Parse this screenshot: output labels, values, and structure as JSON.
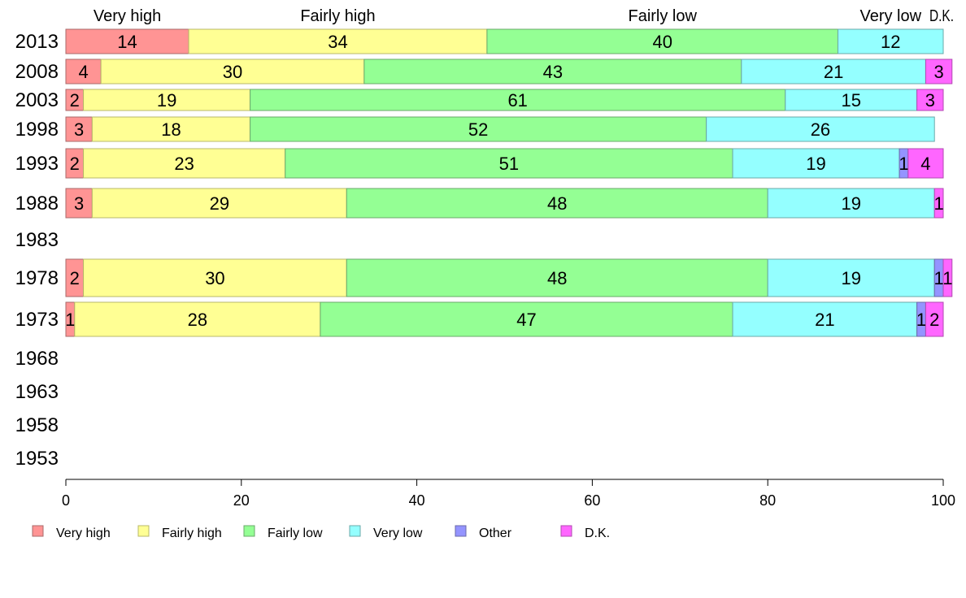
{
  "chart_data": {
    "type": "bar",
    "orientation": "horizontal",
    "stacked": true,
    "title": "",
    "xlabel": "",
    "ylabel": "",
    "xlim": [
      0,
      100
    ],
    "xticks": [
      0,
      20,
      40,
      60,
      80,
      100
    ],
    "grid": false,
    "legend_position": "bottom",
    "categories": [
      "2013",
      "2008",
      "2003",
      "1998",
      "1993",
      "1988",
      "1983",
      "1978",
      "1973",
      "1968",
      "1963",
      "1958",
      "1953"
    ],
    "series": [
      {
        "name": "Very high",
        "color": "#ff9494",
        "values": [
          14,
          4,
          2,
          3,
          2,
          3,
          null,
          2,
          1,
          null,
          null,
          null,
          null
        ]
      },
      {
        "name": "Fairly high",
        "color": "#ffff94",
        "values": [
          34,
          30,
          19,
          18,
          23,
          29,
          null,
          30,
          28,
          null,
          null,
          null,
          null
        ]
      },
      {
        "name": "Fairly low",
        "color": "#94ff94",
        "values": [
          40,
          43,
          61,
          52,
          51,
          48,
          null,
          48,
          47,
          null,
          null,
          null,
          null
        ]
      },
      {
        "name": "Very low",
        "color": "#94ffff",
        "values": [
          12,
          21,
          15,
          26,
          19,
          19,
          null,
          19,
          21,
          null,
          null,
          null,
          null
        ]
      },
      {
        "name": "Other",
        "color": "#9494ff",
        "values": [
          0,
          0,
          0,
          0,
          1,
          0,
          null,
          1,
          1,
          null,
          null,
          null,
          null
        ]
      },
      {
        "name": "D.K.",
        "color": "#ff66ff",
        "values": [
          0,
          3,
          3,
          0,
          4,
          1,
          null,
          1,
          2,
          null,
          null,
          null,
          null
        ]
      }
    ],
    "top_labels": [
      "Very high",
      "Fairly high",
      "Fairly low",
      "Very low",
      "D.K."
    ]
  }
}
